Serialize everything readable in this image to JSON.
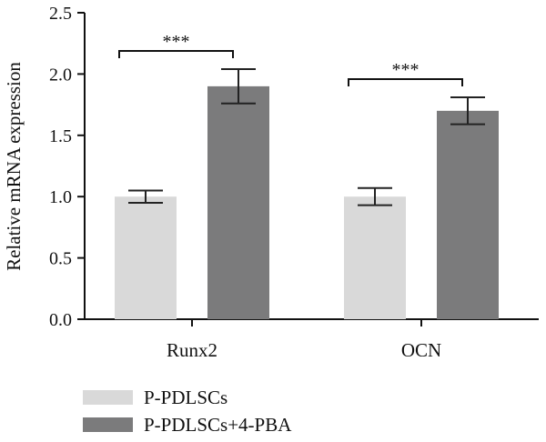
{
  "chart_data": {
    "type": "bar",
    "title": "",
    "xlabel": "",
    "ylabel": "Relative mRNA expression",
    "ylim": [
      0,
      2.5
    ],
    "yticks": [
      "0.0",
      "0.5",
      "1.0",
      "1.5",
      "2.0",
      "2.5"
    ],
    "categories": [
      "Runx2",
      "OCN"
    ],
    "series": [
      {
        "name": "P-PDLSCs",
        "values": [
          1.0,
          1.0
        ],
        "errors": [
          0.05,
          0.07
        ],
        "color": "#d9d9d9"
      },
      {
        "name": "P-PDLSCs+4-PBA",
        "values": [
          1.9,
          1.7
        ],
        "errors": [
          0.14,
          0.11
        ],
        "color": "#7b7b7c"
      }
    ],
    "significance": [
      {
        "category": "Runx2",
        "label": "***"
      },
      {
        "category": "OCN",
        "label": "***"
      }
    ],
    "legend_position": "bottom-left",
    "grid": false
  }
}
